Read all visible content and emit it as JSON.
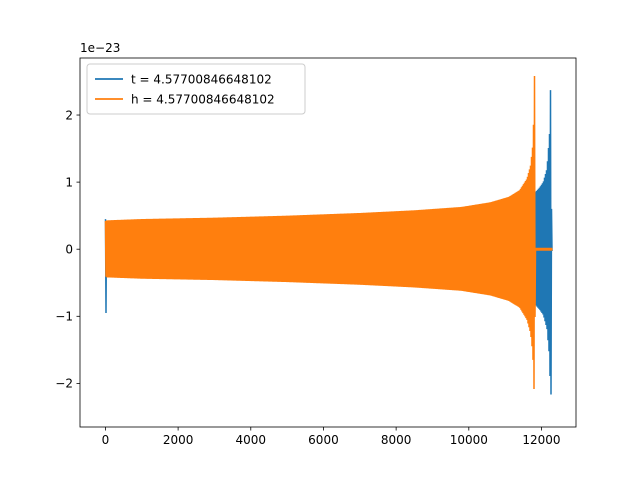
{
  "chart_data": {
    "type": "line",
    "title": "",
    "xlabel": "",
    "ylabel": "",
    "offset_label": "1e−23",
    "xlim": [
      -700,
      12950
    ],
    "ylim": [
      -2.65,
      2.85
    ],
    "xticks": [
      0,
      2000,
      4000,
      6000,
      8000,
      10000,
      12000
    ],
    "xtick_labels": [
      "0",
      "2000",
      "4000",
      "6000",
      "8000",
      "10000",
      "12000"
    ],
    "yticks": [
      -2,
      -1,
      0,
      1,
      2
    ],
    "ytick_labels": [
      "−2",
      "−1",
      "0",
      "1",
      "2"
    ],
    "grid": false,
    "legend_position": "top-left",
    "series": [
      {
        "name": "t = 4.57700846648102",
        "color": "#1f77b4",
        "x_range": [
          0,
          12300
        ],
        "envelope": {
          "x": [
            0,
            30,
            1000,
            3000,
            5000,
            7000,
            9000,
            10500,
            11300,
            11700,
            11850,
            11950,
            12050,
            12150,
            12220,
            12260,
            12280,
            12300
          ],
          "upper": [
            0.45,
            0.42,
            0.43,
            0.45,
            0.48,
            0.52,
            0.57,
            0.63,
            0.7,
            0.76,
            0.86,
            0.92,
            1.0,
            1.2,
            1.7,
            2.65,
            0.05,
            0.0
          ],
          "lower": [
            -1.52,
            -0.42,
            -0.42,
            -0.44,
            -0.47,
            -0.51,
            -0.56,
            -0.62,
            -0.69,
            -0.75,
            -0.84,
            -0.9,
            -0.98,
            -1.18,
            -1.6,
            -2.4,
            -0.05,
            0.0
          ]
        }
      },
      {
        "name": "h = 4.57700846648102",
        "color": "#ff7f0e",
        "x_range": [
          0,
          12300
        ],
        "envelope": {
          "x": [
            0,
            30,
            1000,
            3000,
            5000,
            7000,
            8500,
            9800,
            10600,
            11100,
            11400,
            11600,
            11700,
            11760,
            11790,
            11810,
            11830,
            12300
          ],
          "upper": [
            0.42,
            0.43,
            0.45,
            0.47,
            0.5,
            0.54,
            0.58,
            0.63,
            0.7,
            0.78,
            0.88,
            1.05,
            1.25,
            1.55,
            2.0,
            2.65,
            0.02,
            0.02
          ],
          "lower": [
            -0.4,
            -0.42,
            -0.44,
            -0.46,
            -0.49,
            -0.53,
            -0.57,
            -0.62,
            -0.69,
            -0.77,
            -0.87,
            -1.05,
            -1.25,
            -1.55,
            -2.0,
            -2.4,
            -0.02,
            -0.02
          ]
        }
      }
    ]
  }
}
